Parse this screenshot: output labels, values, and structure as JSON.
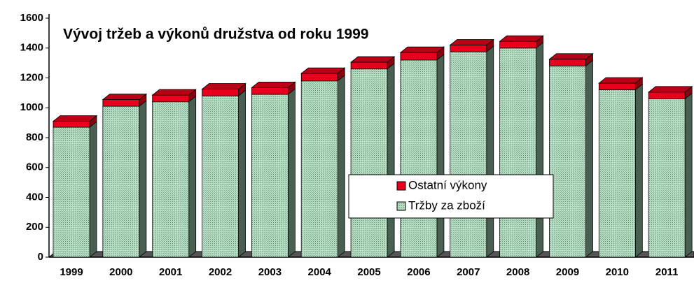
{
  "chart_data": {
    "type": "bar3d-stacked",
    "title": "Vývoj tržeb a výkonů družstva od roku 1999",
    "categories": [
      "1999",
      "2000",
      "2001",
      "2002",
      "2003",
      "2004",
      "2005",
      "2006",
      "2007",
      "2008",
      "2009",
      "2010",
      "2011"
    ],
    "series": [
      {
        "name": "Tržby za zboží",
        "color": "#a3d3b3",
        "values": [
          870,
          1010,
          1040,
          1080,
          1090,
          1180,
          1260,
          1320,
          1375,
          1400,
          1280,
          1120,
          1060
        ]
      },
      {
        "name": "Ostatní výkony",
        "color": "#e8001c",
        "values": [
          40,
          45,
          45,
          45,
          45,
          50,
          45,
          50,
          45,
          45,
          45,
          45,
          45
        ]
      }
    ],
    "ylim": [
      0,
      1600
    ],
    "yticks": [
      0,
      200,
      400,
      600,
      800,
      1000,
      1200,
      1400,
      1600
    ],
    "legend": "center-right"
  }
}
